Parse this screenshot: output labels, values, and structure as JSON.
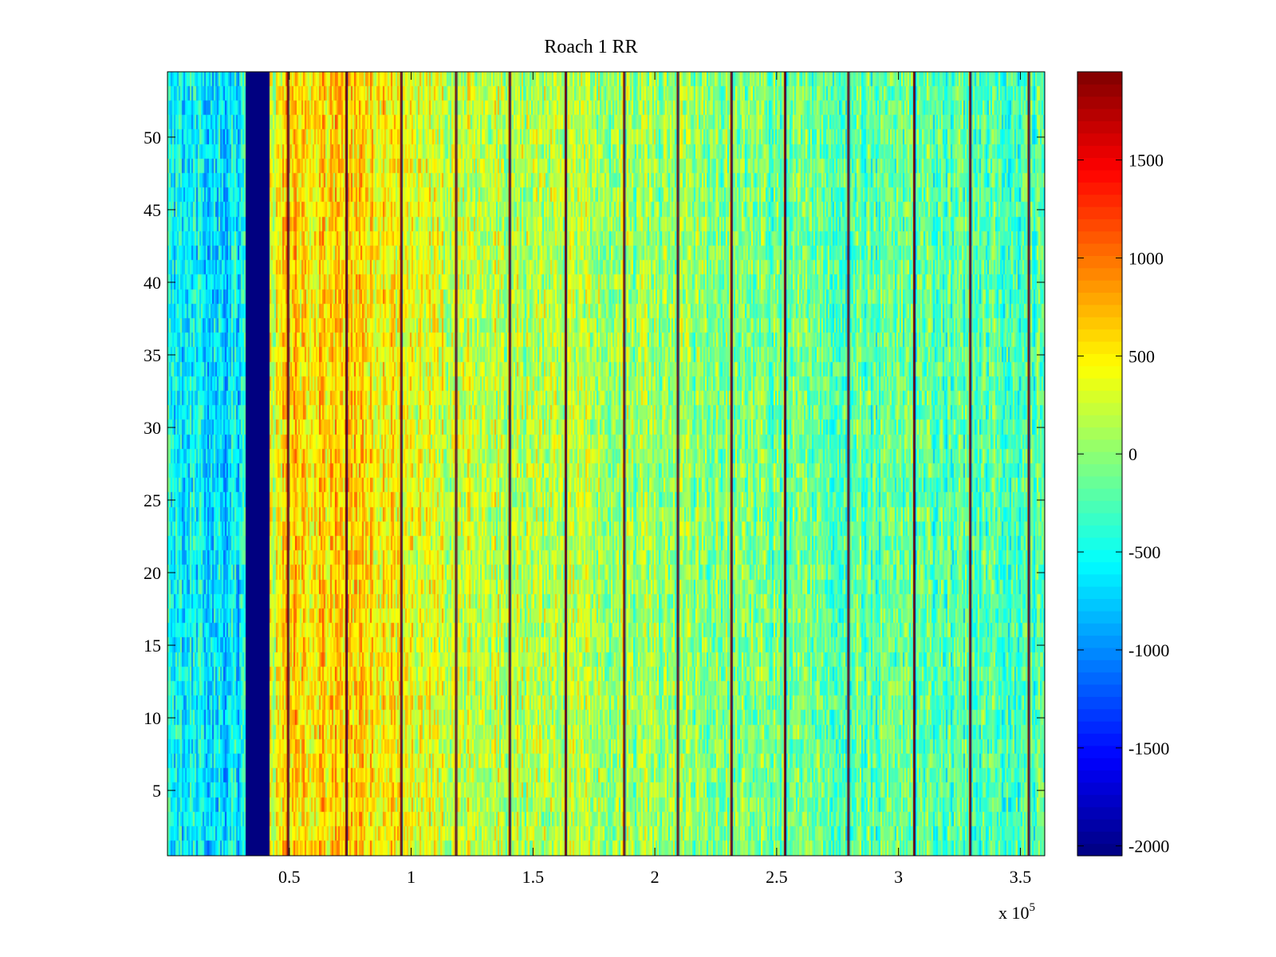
{
  "chart_data": {
    "type": "heatmap",
    "title": "Roach 1 RR",
    "xlabel": "",
    "ylabel": "",
    "x_exponent_label": "x 10",
    "x_exponent_power": "5",
    "xlim": [
      0,
      3.6
    ],
    "ylim": [
      0.5,
      54.5
    ],
    "xticks": [
      0.5,
      1,
      1.5,
      2,
      2.5,
      3,
      3.5
    ],
    "xtick_labels": [
      "0.5",
      "1",
      "1.5",
      "2",
      "2.5",
      "3",
      "3.5"
    ],
    "yticks": [
      5,
      10,
      15,
      20,
      25,
      30,
      35,
      40,
      45,
      50
    ],
    "ytick_labels": [
      "5",
      "10",
      "15",
      "20",
      "25",
      "30",
      "35",
      "40",
      "45",
      "50"
    ],
    "rows": 54,
    "colormap": "jet",
    "clim": [
      -2050,
      1950
    ],
    "colorbar": {
      "ticks": [
        -2000,
        -1500,
        -1000,
        -500,
        0,
        500,
        1000,
        1500
      ],
      "tick_labels": [
        "-2000",
        "-1500",
        "-1000",
        "-500",
        "0",
        "500",
        "1000",
        "1500"
      ]
    },
    "baseline_profile": {
      "x": [
        0,
        0.2,
        0.3,
        0.43,
        0.5,
        0.7,
        0.9,
        1.0,
        1.2,
        1.5,
        2.0,
        2.5,
        3.0,
        3.6
      ],
      "value": [
        -550,
        -650,
        -600,
        300,
        600,
        650,
        500,
        350,
        250,
        150,
        50,
        -100,
        -200,
        -250
      ]
    },
    "low_band": {
      "x_start": 0.32,
      "x_end": 0.42,
      "value": -2050
    },
    "high_lines_x": [
      0.49,
      0.73,
      0.955,
      1.18,
      1.4,
      1.63,
      1.87,
      2.09,
      2.31,
      2.53,
      2.79,
      3.06,
      3.29,
      3.53
    ]
  }
}
